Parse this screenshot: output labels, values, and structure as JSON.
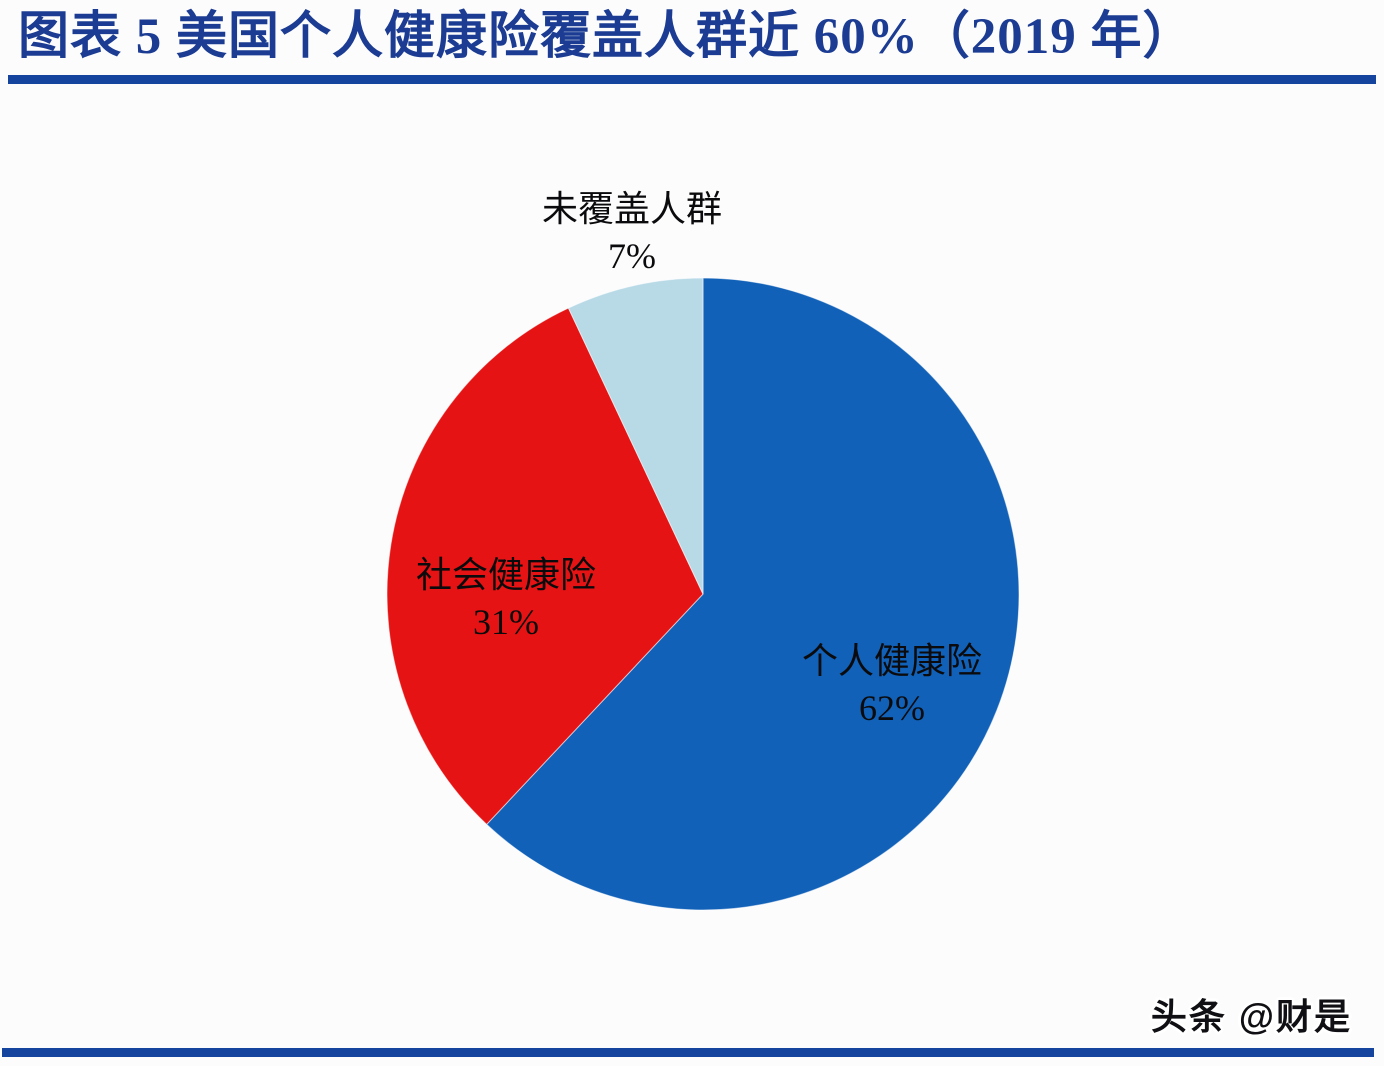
{
  "header": {
    "title": "图表 5  美国个人健康险覆盖人群近 60%（2019 年）"
  },
  "watermark": {
    "text": "头条 @财是"
  },
  "colors": {
    "title_blue": "#1b3c92",
    "rule_blue": "#15449e",
    "slice_blue": "#1161b8",
    "slice_red": "#e51313",
    "slice_lightblue": "#b8d9e6",
    "label_black": "#0b0b0d"
  },
  "chart_data": {
    "type": "pie",
    "title": "美国个人健康险覆盖人群近 60%（2019 年）",
    "categories": [
      "个人健康险",
      "社会健康险",
      "未覆盖人群"
    ],
    "values": [
      62,
      31,
      7
    ],
    "unit": "%",
    "start_angle_deg": 0,
    "direction": "clockwise",
    "legend_position": "none",
    "slices": [
      {
        "label": "个人健康险",
        "value": 62,
        "value_label": "62%",
        "color": "#1161b8",
        "label_placement": "inside"
      },
      {
        "label": "社会健康险",
        "value": 31,
        "value_label": "31%",
        "color": "#e51313",
        "label_placement": "inside"
      },
      {
        "label": "未覆盖人群",
        "value": 7,
        "value_label": "7%",
        "color": "#b8d9e6",
        "label_placement": "outside-top"
      }
    ]
  }
}
